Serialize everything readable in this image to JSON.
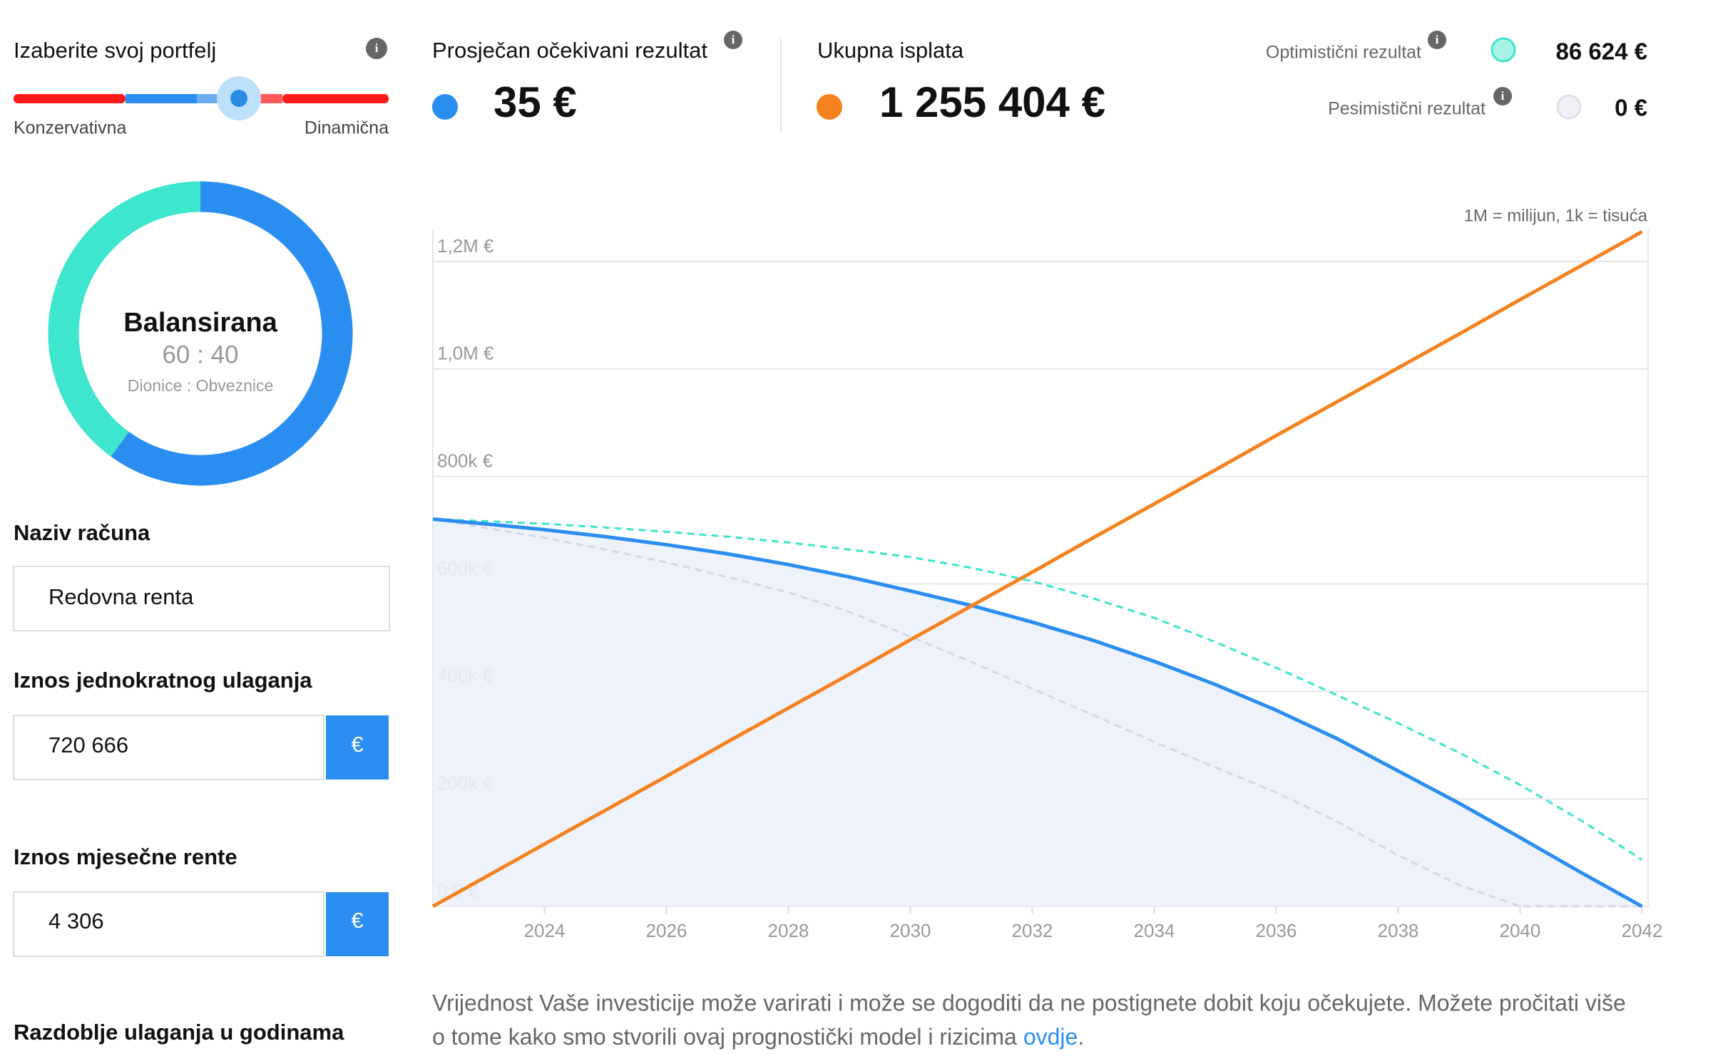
{
  "sidebar": {
    "portfolio_title": "Izaberite svoj portfelj",
    "slider_left": "Konzervativna",
    "slider_right": "Dinamična",
    "donut": {
      "title": "Balansirana",
      "ratio_label": "60 : 40",
      "caption": "Dionice : Obveznice",
      "values": [
        60,
        40
      ],
      "colors": [
        "#2a8ef0",
        "#3de6cc"
      ]
    },
    "fields": [
      {
        "label": "Naziv računa",
        "value": "Redovna renta"
      },
      {
        "label": "Iznos jednokratnog ulaganja",
        "value": "720 666",
        "unit": "€"
      },
      {
        "label": "Iznos mjesečne rente",
        "value": "4 306",
        "unit": "€"
      },
      {
        "label": "Razdoblje ulaganja u godinama"
      }
    ]
  },
  "stats": {
    "average_label": "Prosječan očekivani rezultat",
    "average_value": "35 €",
    "total_label": "Ukupna isplata",
    "total_value": "1 255 404 €",
    "optimistic_label": "Optimistični rezultat",
    "optimistic_value": "86 624 €",
    "pessimistic_label": "Pesimistični rezultat",
    "pessimistic_value": "0 €"
  },
  "chart_data": {
    "type": "line",
    "note": "1M = milijun, 1k = tisuća",
    "x": [
      2022.17,
      2023,
      2024,
      2025,
      2026,
      2027,
      2028,
      2029,
      2030,
      2031,
      2032,
      2033,
      2034,
      2035,
      2036,
      2037,
      2038,
      2039,
      2040,
      2041,
      2042
    ],
    "series": [
      {
        "color": "#d5d8e3",
        "dashed": true,
        "values": [
          720666,
          705000,
          686000,
          664000,
          640000,
          613000,
          584000,
          548000,
          502000,
          455000,
          405000,
          356000,
          306000,
          259000,
          212000,
          158000,
          95000,
          40000,
          0,
          0,
          0
        ]
      },
      {
        "color": "#3de6cc",
        "dashed": true,
        "values": [
          720666,
          717000,
          712000,
          705000,
          697000,
          688000,
          677000,
          664000,
          650000,
          630000,
          605000,
          573000,
          537000,
          492000,
          444000,
          393000,
          341000,
          286000,
          226000,
          160000,
          86624
        ]
      },
      {
        "color": "#2a8ef0",
        "dashed": false,
        "fill": "#ebf1fb",
        "values": [
          720666,
          712000,
          701000,
          688000,
          673000,
          656000,
          636000,
          613000,
          587000,
          560000,
          529000,
          495000,
          456000,
          413000,
          365000,
          312000,
          252000,
          192000,
          128000,
          63000,
          0
        ]
      },
      {
        "color": "#f5821f",
        "dashed": false,
        "values": [
          0,
          52500,
          116000,
          179000,
          242000,
          306000,
          369000,
          432000,
          496000,
          559000,
          622000,
          686000,
          749000,
          812000,
          876000,
          939000,
          1002000,
          1065000,
          1129000,
          1192000,
          1255404
        ]
      }
    ],
    "xlim": [
      2022.17,
      2042.1
    ],
    "xticks": [
      2024,
      2026,
      2028,
      2030,
      2032,
      2034,
      2036,
      2038,
      2040,
      2042
    ],
    "ylim": [
      0,
      1260000
    ],
    "yticks": [
      {
        "value": 0,
        "label": "0,0 €"
      },
      {
        "value": 200000,
        "label": "200k €"
      },
      {
        "value": 400000,
        "label": "400k €"
      },
      {
        "value": 600000,
        "label": "600k €"
      },
      {
        "value": 800000,
        "label": "800k €"
      },
      {
        "value": 1000000,
        "label": "1,0M €"
      },
      {
        "value": 1200000,
        "label": "1,2M €"
      }
    ],
    "grid": true
  },
  "footer": {
    "line1": "Vrijednost Vaše investicije može varirati i može se dogoditi da ne postignete dobit koju očekujete. Možete pročitati više",
    "line2": "o tome kako smo stvorili ovaj prognostički model i rizicima",
    "link": "ovdje",
    "end": "."
  }
}
